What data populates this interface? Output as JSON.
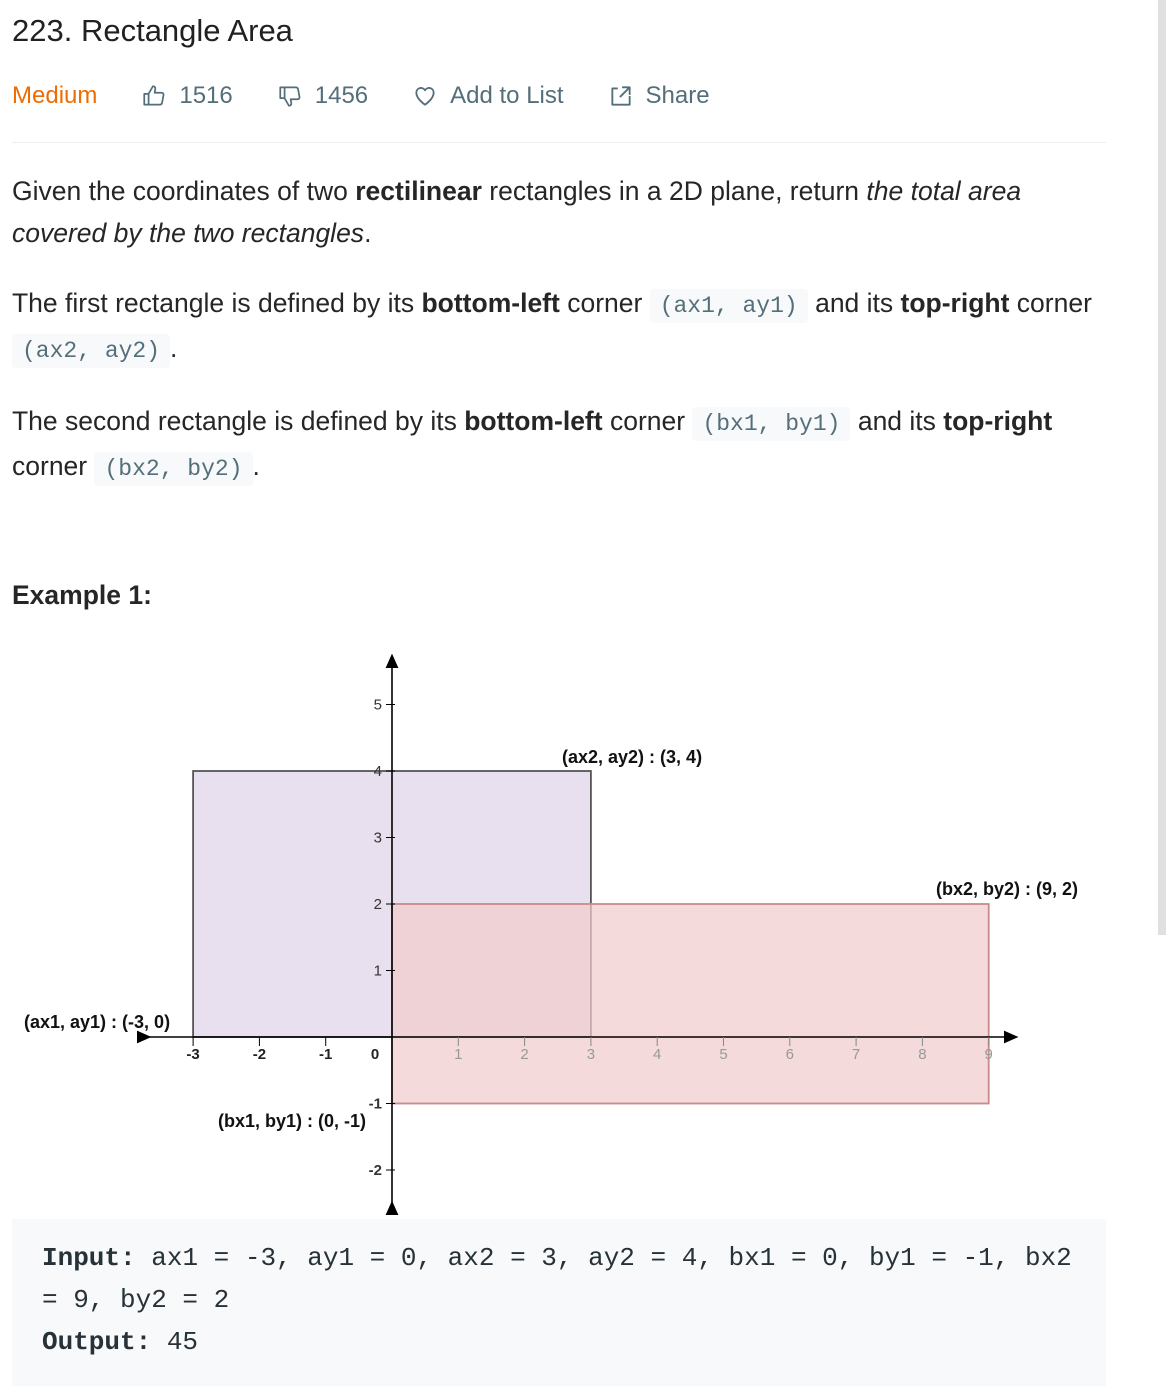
{
  "problem": {
    "title": "223. Rectangle Area",
    "difficulty": "Medium",
    "likes": "1516",
    "dislikes": "1456",
    "add_to_list": "Add to List",
    "share": "Share"
  },
  "description": {
    "p1": [
      "Given the coordinates of two ",
      "rectilinear",
      " rectangles in a 2D plane, return ",
      "the total area covered by the two rectangles",
      "."
    ],
    "p2": [
      "The first rectangle is defined by its ",
      "bottom-left",
      " corner ",
      "(ax1, ay1)",
      " and its ",
      "top-right",
      " corner ",
      "(ax2, ay2)",
      "."
    ],
    "p3": [
      "The second rectangle is defined by its ",
      "bottom-left",
      " corner ",
      "(bx1, by1)",
      " and its ",
      "top-right",
      " corner ",
      "(bx2, by2)",
      "."
    ]
  },
  "example": {
    "title": "Example 1:",
    "input_label": "Input:",
    "input_value": "ax1 = -3, ay1 = 0, ax2 = 3, ay2 = 4, bx1 = 0, by1 = -1, bx2 = 9, by2 = 2",
    "output_label": "Output:",
    "output_value": "45"
  },
  "chart_data": {
    "type": "diagram",
    "x_ticks": [
      "-3",
      "-2",
      "-1",
      "0",
      "1",
      "2",
      "3",
      "4",
      "5",
      "6",
      "7",
      "8",
      "9"
    ],
    "y_ticks": [
      "-2",
      "-1",
      "1",
      "2",
      "3",
      "4",
      "5"
    ],
    "rectangles": [
      {
        "x1": -3,
        "y1": 0,
        "x2": 3,
        "y2": 4,
        "color": "#e8e0ee",
        "stroke": "#555555"
      },
      {
        "x1": 0,
        "y1": -1,
        "x2": 9,
        "y2": 2,
        "color": "#f0cccc",
        "stroke": "#c98a8a"
      }
    ],
    "annotations": [
      "(ax1, ay1) : (-3, 0)",
      "(ax2, ay2) : (3, 4)",
      "(bx1, by1) : (0, -1)",
      "(bx2, by2) : (9, 2)"
    ]
  },
  "colors": {
    "difficulty": "#ef6c00",
    "meta_text": "#546e7a",
    "code_bg": "#f7f9fa"
  }
}
